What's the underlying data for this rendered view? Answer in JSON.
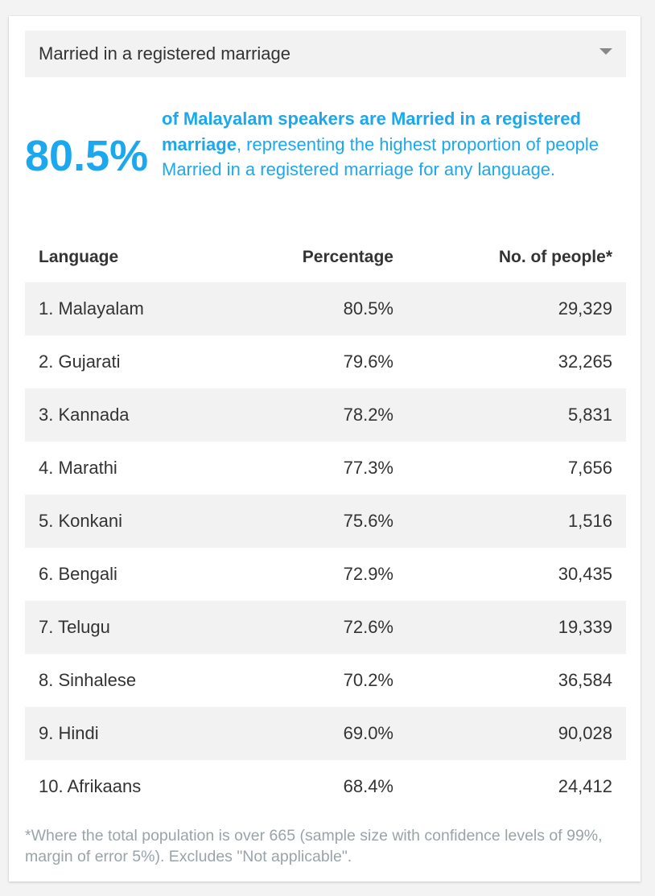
{
  "dropdown": {
    "selected": "Married in a registered marriage",
    "icon": "caret-down-icon"
  },
  "headline": {
    "value": "80.5%",
    "desc_bold": "of Malayalam speakers are Married in a registered marriage",
    "desc_rest": ", representing the highest proportion of people Married in a registered marriage for any language.",
    "accent_color": "#1ba8ee"
  },
  "table": {
    "headers": {
      "language": "Language",
      "percentage": "Percentage",
      "people": "No. of people*"
    },
    "rows": [
      {
        "language": "1. Malayalam",
        "percentage": "80.5%",
        "people": "29,329"
      },
      {
        "language": "2. Gujarati",
        "percentage": "79.6%",
        "people": "32,265"
      },
      {
        "language": "3. Kannada",
        "percentage": "78.2%",
        "people": "5,831"
      },
      {
        "language": "4. Marathi",
        "percentage": "77.3%",
        "people": "7,656"
      },
      {
        "language": "5. Konkani",
        "percentage": "75.6%",
        "people": "1,516"
      },
      {
        "language": "6. Bengali",
        "percentage": "72.9%",
        "people": "30,435"
      },
      {
        "language": "7. Telugu",
        "percentage": "72.6%",
        "people": "19,339"
      },
      {
        "language": "8. Sinhalese",
        "percentage": "70.2%",
        "people": "36,584"
      },
      {
        "language": "9. Hindi",
        "percentage": "69.0%",
        "people": "90,028"
      },
      {
        "language": "10. Afrikaans",
        "percentage": "68.4%",
        "people": "24,412"
      }
    ]
  },
  "footnote": "*Where the total population is over 665 (sample size with confidence levels of 99%, margin of error 5%). Excludes \"Not applicable\"."
}
